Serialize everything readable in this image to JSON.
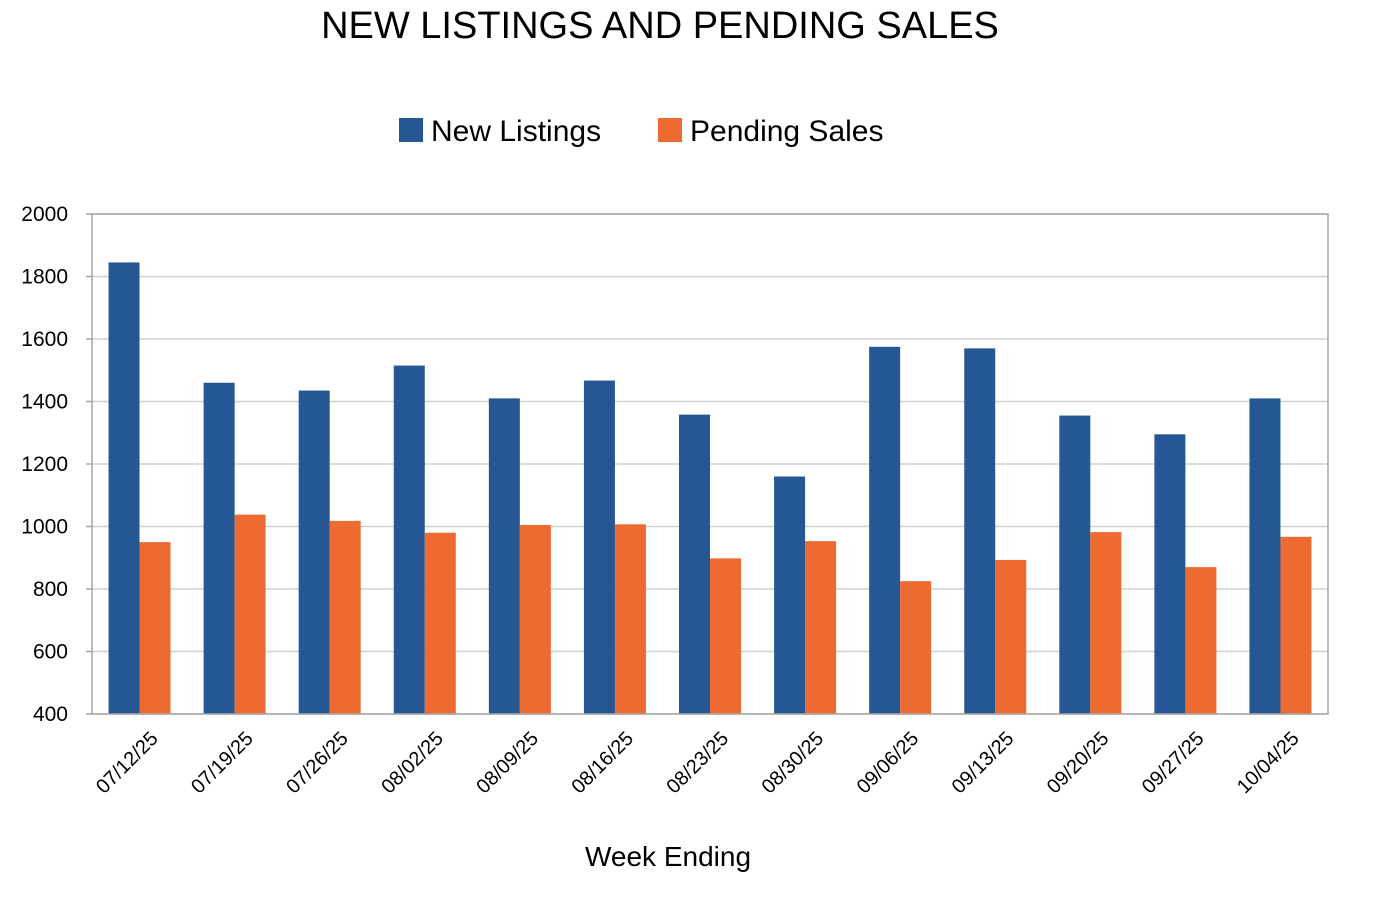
{
  "chart_data": {
    "type": "bar",
    "title": "NEW LISTINGS AND PENDING SALES",
    "xlabel": "Week Ending",
    "ylabel": "",
    "ylim": [
      400,
      2000
    ],
    "yticks": [
      400,
      600,
      800,
      1000,
      1200,
      1400,
      1600,
      1800,
      2000
    ],
    "categories": [
      "07/12/25",
      "07/19/25",
      "07/26/25",
      "08/02/25",
      "08/09/25",
      "08/16/25",
      "08/23/25",
      "08/30/25",
      "09/06/25",
      "09/13/25",
      "09/20/25",
      "09/27/25",
      "10/04/25"
    ],
    "series": [
      {
        "name": "New Listings",
        "color": "#255794",
        "values": [
          1845,
          1460,
          1435,
          1515,
          1410,
          1467,
          1358,
          1160,
          1575,
          1570,
          1355,
          1295,
          1410
        ]
      },
      {
        "name": "Pending Sales",
        "color": "#ED6A31",
        "values": [
          950,
          1038,
          1018,
          980,
          1005,
          1007,
          898,
          953,
          825,
          893,
          982,
          870,
          967
        ]
      }
    ],
    "legend": "top",
    "grid": true
  }
}
